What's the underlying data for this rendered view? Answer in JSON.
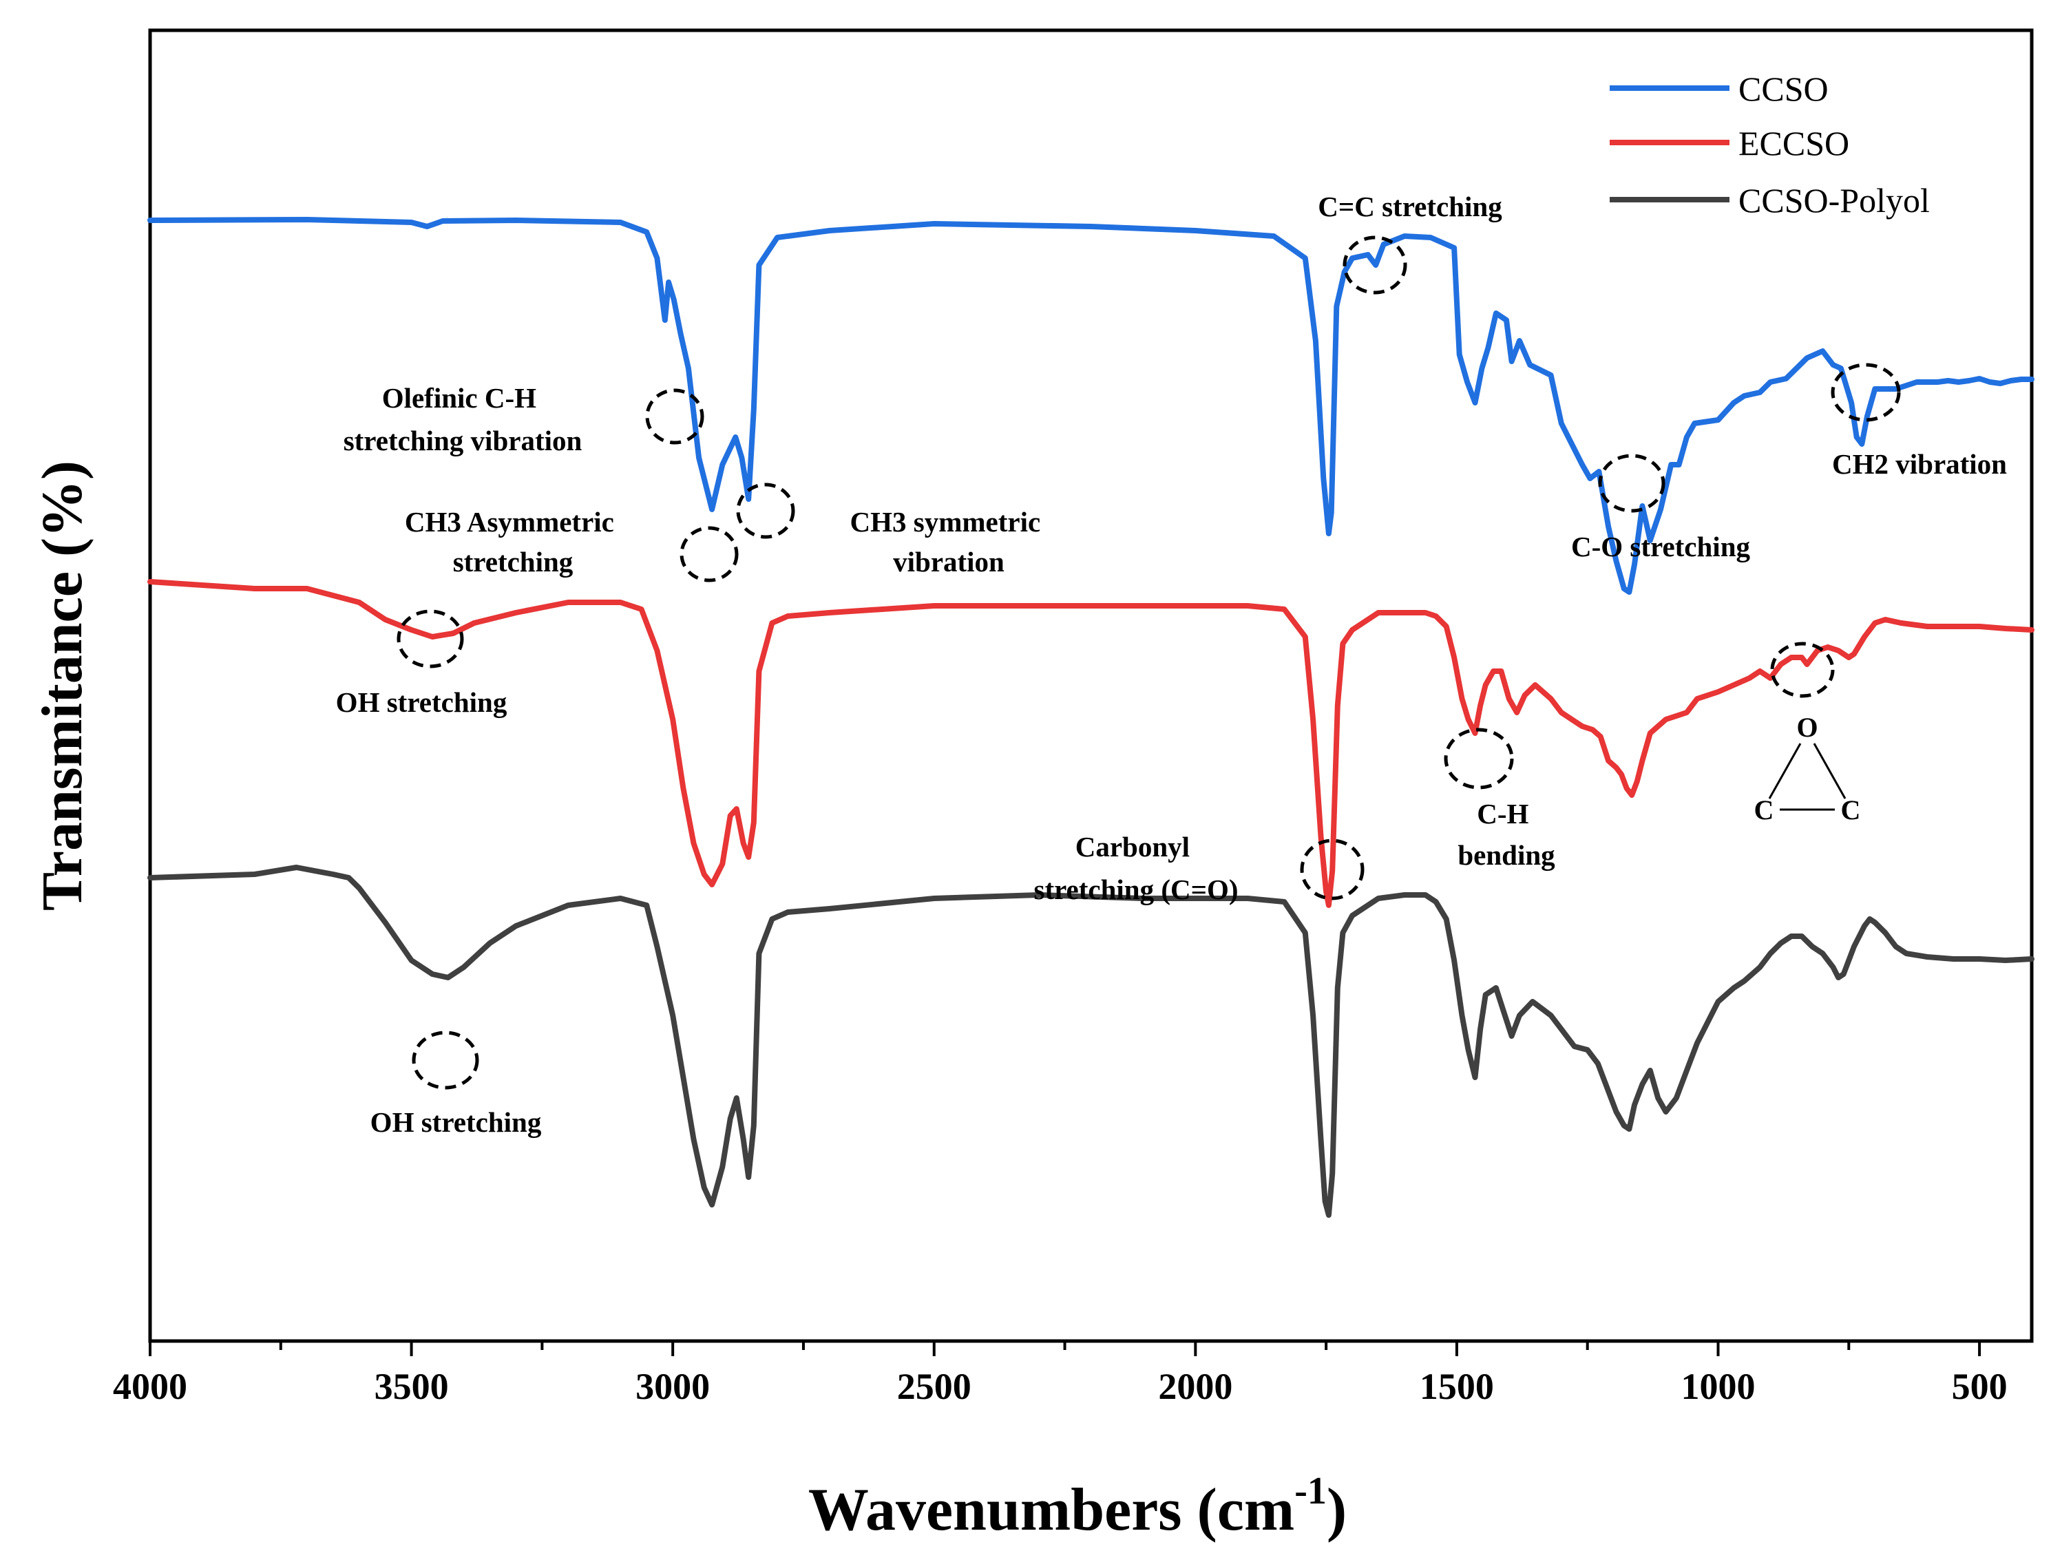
{
  "chart_data": {
    "type": "line",
    "xlabel": "Wavenumbers (cm",
    "xlabel_sup": "-1",
    "xlabel_close": ")",
    "ylabel": "Transmitance (%)",
    "xlim": [
      4000,
      400
    ],
    "x_ticks": [
      4000,
      3500,
      3000,
      2500,
      2000,
      1500,
      1000,
      500
    ],
    "y_ticks_shown": false,
    "legend_position": "top-right",
    "series": [
      {
        "name": "CCSO",
        "color": "#2170e0",
        "offset": 0,
        "points": [
          [
            4000,
            5
          ],
          [
            3700,
            4
          ],
          [
            3500,
            8
          ],
          [
            3470,
            14
          ],
          [
            3440,
            6
          ],
          [
            3300,
            5
          ],
          [
            3100,
            8
          ],
          [
            3050,
            22
          ],
          [
            3030,
            60
          ],
          [
            3015,
            150
          ],
          [
            3008,
            95
          ],
          [
            2998,
            120
          ],
          [
            2985,
            170
          ],
          [
            2970,
            220
          ],
          [
            2950,
            350
          ],
          [
            2925,
            425
          ],
          [
            2905,
            360
          ],
          [
            2880,
            320
          ],
          [
            2868,
            350
          ],
          [
            2855,
            410
          ],
          [
            2845,
            280
          ],
          [
            2835,
            70
          ],
          [
            2800,
            30
          ],
          [
            2700,
            20
          ],
          [
            2500,
            10
          ],
          [
            2200,
            14
          ],
          [
            2000,
            20
          ],
          [
            1850,
            28
          ],
          [
            1790,
            60
          ],
          [
            1770,
            180
          ],
          [
            1755,
            380
          ],
          [
            1745,
            460
          ],
          [
            1740,
            430
          ],
          [
            1730,
            130
          ],
          [
            1715,
            80
          ],
          [
            1700,
            60
          ],
          [
            1670,
            55
          ],
          [
            1655,
            70
          ],
          [
            1640,
            40
          ],
          [
            1600,
            28
          ],
          [
            1550,
            30
          ],
          [
            1505,
            45
          ],
          [
            1495,
            200
          ],
          [
            1480,
            240
          ],
          [
            1465,
            270
          ],
          [
            1452,
            220
          ],
          [
            1440,
            190
          ],
          [
            1425,
            140
          ],
          [
            1405,
            150
          ],
          [
            1395,
            210
          ],
          [
            1380,
            180
          ],
          [
            1360,
            215
          ],
          [
            1320,
            230
          ],
          [
            1300,
            300
          ],
          [
            1260,
            360
          ],
          [
            1245,
            380
          ],
          [
            1228,
            370
          ],
          [
            1210,
            450
          ],
          [
            1195,
            500
          ],
          [
            1180,
            540
          ],
          [
            1170,
            545
          ],
          [
            1160,
            505
          ],
          [
            1145,
            420
          ],
          [
            1130,
            470
          ],
          [
            1110,
            425
          ],
          [
            1090,
            360
          ],
          [
            1075,
            360
          ],
          [
            1060,
            320
          ],
          [
            1045,
            300
          ],
          [
            1000,
            295
          ],
          [
            970,
            270
          ],
          [
            950,
            260
          ],
          [
            920,
            255
          ],
          [
            900,
            240
          ],
          [
            870,
            235
          ],
          [
            850,
            220
          ],
          [
            830,
            205
          ],
          [
            800,
            195
          ],
          [
            780,
            215
          ],
          [
            765,
            220
          ],
          [
            745,
            270
          ],
          [
            735,
            320
          ],
          [
            725,
            330
          ],
          [
            715,
            290
          ],
          [
            700,
            250
          ],
          [
            660,
            250
          ],
          [
            620,
            240
          ],
          [
            580,
            240
          ],
          [
            560,
            238
          ],
          [
            540,
            240
          ],
          [
            520,
            238
          ],
          [
            500,
            235
          ],
          [
            480,
            240
          ],
          [
            460,
            242
          ],
          [
            440,
            238
          ],
          [
            420,
            236
          ],
          [
            400,
            236
          ]
        ]
      },
      {
        "name": "ECCSO",
        "color": "#e83535",
        "offset": 530,
        "points": [
          [
            4000,
            0
          ],
          [
            3800,
            10
          ],
          [
            3700,
            10
          ],
          [
            3600,
            30
          ],
          [
            3550,
            55
          ],
          [
            3500,
            70
          ],
          [
            3460,
            80
          ],
          [
            3420,
            75
          ],
          [
            3380,
            60
          ],
          [
            3300,
            45
          ],
          [
            3200,
            30
          ],
          [
            3100,
            30
          ],
          [
            3060,
            40
          ],
          [
            3030,
            100
          ],
          [
            3000,
            200
          ],
          [
            2980,
            300
          ],
          [
            2960,
            380
          ],
          [
            2940,
            425
          ],
          [
            2925,
            440
          ],
          [
            2905,
            410
          ],
          [
            2890,
            340
          ],
          [
            2878,
            330
          ],
          [
            2865,
            380
          ],
          [
            2855,
            400
          ],
          [
            2845,
            350
          ],
          [
            2835,
            130
          ],
          [
            2810,
            60
          ],
          [
            2780,
            50
          ],
          [
            2700,
            45
          ],
          [
            2500,
            35
          ],
          [
            2300,
            35
          ],
          [
            2100,
            35
          ],
          [
            1900,
            35
          ],
          [
            1830,
            40
          ],
          [
            1790,
            80
          ],
          [
            1775,
            200
          ],
          [
            1760,
            370
          ],
          [
            1750,
            450
          ],
          [
            1745,
            470
          ],
          [
            1738,
            420
          ],
          [
            1728,
            180
          ],
          [
            1718,
            90
          ],
          [
            1700,
            70
          ],
          [
            1680,
            60
          ],
          [
            1650,
            45
          ],
          [
            1600,
            45
          ],
          [
            1560,
            45
          ],
          [
            1540,
            50
          ],
          [
            1520,
            65
          ],
          [
            1505,
            110
          ],
          [
            1490,
            170
          ],
          [
            1478,
            200
          ],
          [
            1465,
            220
          ],
          [
            1455,
            180
          ],
          [
            1445,
            150
          ],
          [
            1430,
            130
          ],
          [
            1415,
            130
          ],
          [
            1400,
            170
          ],
          [
            1385,
            190
          ],
          [
            1370,
            165
          ],
          [
            1350,
            150
          ],
          [
            1320,
            170
          ],
          [
            1300,
            190
          ],
          [
            1280,
            200
          ],
          [
            1260,
            210
          ],
          [
            1240,
            215
          ],
          [
            1225,
            225
          ],
          [
            1210,
            260
          ],
          [
            1195,
            270
          ],
          [
            1185,
            280
          ],
          [
            1175,
            300
          ],
          [
            1165,
            310
          ],
          [
            1155,
            290
          ],
          [
            1145,
            260
          ],
          [
            1130,
            220
          ],
          [
            1115,
            210
          ],
          [
            1100,
            200
          ],
          [
            1080,
            195
          ],
          [
            1060,
            190
          ],
          [
            1040,
            170
          ],
          [
            1000,
            160
          ],
          [
            970,
            150
          ],
          [
            940,
            140
          ],
          [
            920,
            130
          ],
          [
            900,
            140
          ],
          [
            880,
            120
          ],
          [
            860,
            110
          ],
          [
            840,
            110
          ],
          [
            830,
            120
          ],
          [
            810,
            100
          ],
          [
            790,
            95
          ],
          [
            770,
            100
          ],
          [
            750,
            110
          ],
          [
            740,
            105
          ],
          [
            720,
            80
          ],
          [
            700,
            60
          ],
          [
            680,
            55
          ],
          [
            650,
            60
          ],
          [
            600,
            65
          ],
          [
            550,
            65
          ],
          [
            500,
            65
          ],
          [
            450,
            68
          ],
          [
            400,
            70
          ]
        ]
      },
      {
        "name": "CCSO-Polyol",
        "color": "#404040",
        "offset": 960,
        "points": [
          [
            4000,
            0
          ],
          [
            3800,
            -5
          ],
          [
            3720,
            -15
          ],
          [
            3650,
            -5
          ],
          [
            3620,
            0
          ],
          [
            3600,
            15
          ],
          [
            3550,
            65
          ],
          [
            3500,
            120
          ],
          [
            3460,
            140
          ],
          [
            3430,
            145
          ],
          [
            3400,
            130
          ],
          [
            3350,
            95
          ],
          [
            3300,
            70
          ],
          [
            3200,
            40
          ],
          [
            3100,
            30
          ],
          [
            3050,
            40
          ],
          [
            3030,
            100
          ],
          [
            3000,
            200
          ],
          [
            2980,
            290
          ],
          [
            2960,
            380
          ],
          [
            2940,
            450
          ],
          [
            2925,
            475
          ],
          [
            2905,
            420
          ],
          [
            2890,
            350
          ],
          [
            2878,
            320
          ],
          [
            2865,
            380
          ],
          [
            2855,
            435
          ],
          [
            2845,
            360
          ],
          [
            2835,
            110
          ],
          [
            2810,
            60
          ],
          [
            2780,
            50
          ],
          [
            2700,
            45
          ],
          [
            2500,
            30
          ],
          [
            2300,
            25
          ],
          [
            2100,
            30
          ],
          [
            1900,
            30
          ],
          [
            1830,
            35
          ],
          [
            1790,
            80
          ],
          [
            1775,
            200
          ],
          [
            1760,
            380
          ],
          [
            1752,
            470
          ],
          [
            1745,
            490
          ],
          [
            1738,
            430
          ],
          [
            1728,
            160
          ],
          [
            1718,
            80
          ],
          [
            1700,
            55
          ],
          [
            1680,
            45
          ],
          [
            1650,
            30
          ],
          [
            1600,
            25
          ],
          [
            1560,
            25
          ],
          [
            1540,
            35
          ],
          [
            1520,
            60
          ],
          [
            1505,
            120
          ],
          [
            1490,
            200
          ],
          [
            1478,
            250
          ],
          [
            1465,
            290
          ],
          [
            1455,
            220
          ],
          [
            1445,
            170
          ],
          [
            1425,
            160
          ],
          [
            1410,
            195
          ],
          [
            1395,
            230
          ],
          [
            1380,
            200
          ],
          [
            1355,
            180
          ],
          [
            1320,
            200
          ],
          [
            1300,
            220
          ],
          [
            1275,
            245
          ],
          [
            1250,
            250
          ],
          [
            1230,
            270
          ],
          [
            1210,
            310
          ],
          [
            1195,
            340
          ],
          [
            1180,
            360
          ],
          [
            1170,
            365
          ],
          [
            1160,
            330
          ],
          [
            1145,
            300
          ],
          [
            1130,
            280
          ],
          [
            1115,
            320
          ],
          [
            1100,
            340
          ],
          [
            1080,
            320
          ],
          [
            1060,
            280
          ],
          [
            1040,
            240
          ],
          [
            1000,
            180
          ],
          [
            970,
            160
          ],
          [
            950,
            150
          ],
          [
            920,
            130
          ],
          [
            900,
            110
          ],
          [
            880,
            95
          ],
          [
            860,
            85
          ],
          [
            840,
            85
          ],
          [
            820,
            100
          ],
          [
            800,
            110
          ],
          [
            780,
            130
          ],
          [
            770,
            145
          ],
          [
            760,
            140
          ],
          [
            740,
            100
          ],
          [
            720,
            70
          ],
          [
            710,
            60
          ],
          [
            700,
            65
          ],
          [
            680,
            80
          ],
          [
            660,
            100
          ],
          [
            640,
            110
          ],
          [
            600,
            115
          ],
          [
            550,
            118
          ],
          [
            500,
            118
          ],
          [
            450,
            120
          ],
          [
            400,
            118
          ]
        ]
      }
    ],
    "legend": [
      "CCSO",
      "ECCSO",
      "CCSO-Polyol"
    ],
    "annotations": [
      {
        "lines": [
          "Olefinic C-H",
          "stretching vibration"
        ]
      },
      {
        "lines": [
          "CH3 Asymmetric",
          "stretching"
        ]
      },
      {
        "lines": [
          "CH3 symmetric",
          "vibration"
        ]
      },
      {
        "lines": [
          "C=C stretching"
        ]
      },
      {
        "lines": [
          "C-O stretching"
        ]
      },
      {
        "lines": [
          "CH2 vibration"
        ]
      },
      {
        "lines": [
          "OH stretching"
        ]
      },
      {
        "lines": [
          "Carbonyl",
          "stretching (C=O)"
        ]
      },
      {
        "lines": [
          "C-H",
          "bending"
        ]
      },
      {
        "lines": [
          "OH stretching"
        ]
      }
    ],
    "epoxide_ring": {
      "top": "O",
      "left": "C",
      "right": "C"
    }
  }
}
